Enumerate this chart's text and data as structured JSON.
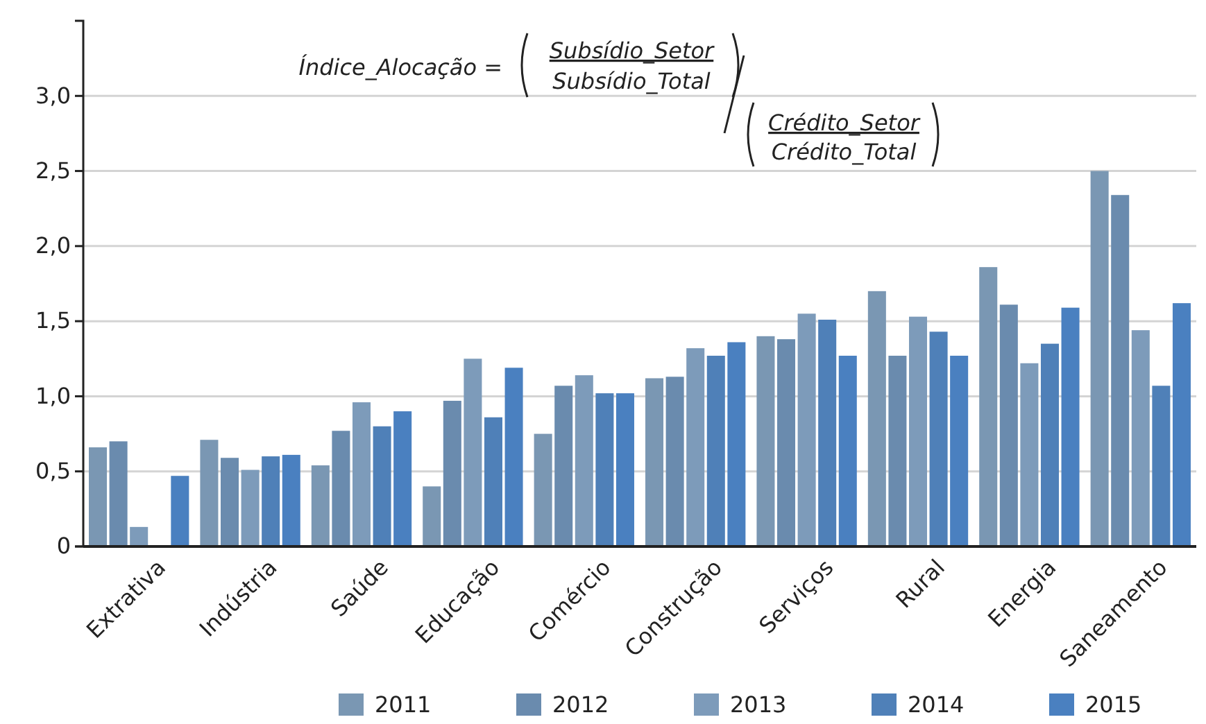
{
  "chart_data": {
    "type": "bar",
    "categories": [
      "Extrativa",
      "Indústria",
      "Saúde",
      "Educação",
      "Comércio",
      "Construção",
      "Serviços",
      "Rural",
      "Energia",
      "Saneamento"
    ],
    "series": [
      {
        "name": "2011",
        "color": "#7a97b3",
        "values": [
          0.66,
          0.71,
          0.54,
          0.4,
          0.75,
          1.12,
          1.4,
          1.7,
          1.86,
          2.5
        ]
      },
      {
        "name": "2012",
        "color": "#6a8bae",
        "values": [
          0.7,
          0.59,
          0.77,
          0.97,
          1.07,
          1.13,
          1.38,
          1.27,
          1.61,
          2.34
        ]
      },
      {
        "name": "2013",
        "color": "#7d9bba",
        "values": [
          0.13,
          0.51,
          0.96,
          1.25,
          1.14,
          1.32,
          1.55,
          1.53,
          1.22,
          1.44
        ]
      },
      {
        "name": "2014",
        "color": "#4f80b8",
        "values": [
          null,
          0.6,
          0.8,
          0.86,
          1.02,
          1.27,
          1.51,
          1.43,
          1.35,
          1.07
        ]
      },
      {
        "name": "2015",
        "color": "#4a80c0",
        "values": [
          0.47,
          0.61,
          0.9,
          1.19,
          1.02,
          1.36,
          1.27,
          1.27,
          1.59,
          1.62
        ]
      }
    ],
    "ylim": [
      0,
      3.5
    ],
    "yticks": [
      {
        "value": 0,
        "label": "0"
      },
      {
        "value": 0.5,
        "label": "0,5"
      },
      {
        "value": 1,
        "label": "1,0"
      },
      {
        "value": 1.5,
        "label": "1,5"
      },
      {
        "value": 2,
        "label": "2,0"
      },
      {
        "value": 2.5,
        "label": "2,5"
      },
      {
        "value": 3,
        "label": "3,0"
      }
    ],
    "grid": "y",
    "legend": "bottom",
    "annotations": [
      "Índice_Alocação =",
      "Subsídio_Setor",
      "Subsídio_Total",
      "Crédito_Setor",
      "Crédito_Total"
    ]
  }
}
